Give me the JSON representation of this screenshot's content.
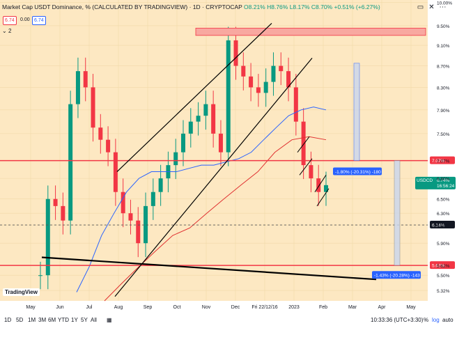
{
  "header": {
    "title": "Market Cap USDT Dominance, % (CALCULATED BY TRADINGVIEW) · 1D · CRYPTOCAP",
    "ohlc": "O8.21% H8.76% L8.17% C8.70% +0.51% (+6.27%)",
    "price_left": "6.74",
    "price_mid": "0.00",
    "price_right": "6.74",
    "collapse_label": "2"
  },
  "toolbar": {
    "ranges": [
      "1D",
      "5D",
      "1M",
      "3M",
      "6M",
      "YTD",
      "1Y",
      "5Y",
      "All"
    ],
    "time": "10:33:36 (UTC+3:30)",
    "percent": "%",
    "log": "log",
    "auto": "auto"
  },
  "branding": {
    "logo": "TradingView"
  },
  "chart_data": {
    "type": "candlestick",
    "title": "Market Cap USDT Dominance, % (CALCULATED BY TRADINGVIEW)",
    "x_ticks": [
      "May",
      "Jun",
      "Jul",
      "Aug",
      "Sep",
      "Oct",
      "Nov",
      "Dec",
      "Fri 22/12/16",
      "2023",
      "Feb",
      "Mar",
      "Apr",
      "May"
    ],
    "y_ticks": [
      "10.00%",
      "9.50%",
      "9.10%",
      "8.70%",
      "8.30%",
      "7.90%",
      "7.50%",
      "7.07%",
      "6.80%",
      "6.50%",
      "6.30%",
      "6.14%",
      "5.90%",
      "5.62%",
      "5.50%",
      "5.32%"
    ],
    "ylim": [
      5.2,
      10.05
    ],
    "scale": "log",
    "price_labels": [
      {
        "text": "7.07%",
        "color": "#f23645"
      },
      {
        "text": "5.62%",
        "color": "#f23645"
      },
      {
        "text": "6.14%",
        "color": "#131722"
      }
    ],
    "last_price": {
      "symbol": "USDCD",
      "value": "6.74%",
      "countdown": "16:56:24"
    },
    "annotations": [
      {
        "text": "-1.80% (-20.31%) -180"
      },
      {
        "text": "-1.43% (-20.28%) -143"
      }
    ],
    "horizontal_levels": [
      {
        "value": 7.07,
        "color": "#f23645"
      },
      {
        "value": 5.62,
        "color": "#f23645"
      },
      {
        "value": 6.14,
        "color": "#555555"
      }
    ],
    "series": [
      {
        "name": "close",
        "values": [
          5.5,
          6.5,
          6.4,
          6.2,
          8.0,
          8.6,
          8.3,
          7.6,
          7.4,
          7.2,
          6.6,
          6.3,
          6.2,
          5.9,
          6.4,
          6.6,
          6.8,
          7.0,
          7.2,
          7.5,
          7.7,
          7.8,
          8.0,
          7.5,
          7.2,
          9.2,
          8.7,
          8.5,
          8.3,
          8.2,
          8.4,
          8.7,
          8.6,
          8.3,
          7.7,
          7.0,
          6.8,
          6.6,
          6.7
        ]
      },
      {
        "name": "MA-blue",
        "values": [
          5.3,
          5.6,
          6.0,
          6.3,
          6.6,
          6.8,
          6.9,
          6.9,
          6.9,
          6.95,
          7.0,
          7.0,
          7.05,
          7.1,
          7.2,
          7.4,
          7.6,
          7.8,
          7.9,
          7.95,
          7.9
        ]
      },
      {
        "name": "MA-red",
        "values": [
          5.2,
          5.4,
          5.6,
          5.8,
          6.0,
          6.1,
          6.3,
          6.5,
          6.7,
          6.9,
          7.2,
          7.4,
          7.45,
          7.4
        ]
      }
    ]
  },
  "colors": {
    "background": "#fde8c2",
    "up": "#089981",
    "down": "#f23645",
    "accent": "#2962ff"
  }
}
